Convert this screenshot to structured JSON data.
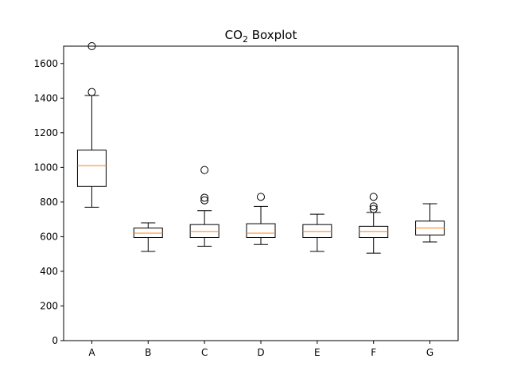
{
  "chart_data": {
    "type": "boxplot",
    "title": {
      "prefix": "CO",
      "subscript": "2",
      "suffix": " Boxplot"
    },
    "xlabel": "",
    "ylabel": "",
    "ylim": [
      0,
      1700
    ],
    "yticks": [
      0,
      200,
      400,
      600,
      800,
      1000,
      1200,
      1400,
      1600
    ],
    "categories": [
      "A",
      "B",
      "C",
      "D",
      "E",
      "F",
      "G"
    ],
    "boxes": [
      {
        "label": "A",
        "whisker_low": 770,
        "q1": 890,
        "median": 1010,
        "q3": 1100,
        "whisker_high": 1415,
        "outliers": [
          1435,
          1700
        ]
      },
      {
        "label": "B",
        "whisker_low": 515,
        "q1": 595,
        "median": 620,
        "q3": 650,
        "whisker_high": 680,
        "outliers": []
      },
      {
        "label": "C",
        "whisker_low": 545,
        "q1": 595,
        "median": 630,
        "q3": 670,
        "whisker_high": 750,
        "outliers": [
          810,
          825,
          985
        ]
      },
      {
        "label": "D",
        "whisker_low": 555,
        "q1": 595,
        "median": 620,
        "q3": 675,
        "whisker_high": 775,
        "outliers": [
          830
        ]
      },
      {
        "label": "E",
        "whisker_low": 515,
        "q1": 595,
        "median": 630,
        "q3": 670,
        "whisker_high": 730,
        "outliers": []
      },
      {
        "label": "F",
        "whisker_low": 505,
        "q1": 595,
        "median": 630,
        "q3": 660,
        "whisker_high": 740,
        "outliers": [
          760,
          775,
          830
        ]
      },
      {
        "label": "G",
        "whisker_low": 570,
        "q1": 610,
        "median": 650,
        "q3": 690,
        "whisker_high": 790,
        "outliers": []
      }
    ],
    "colors": {
      "box": "#000000",
      "median": "#ff7f0e",
      "axes": "#000000"
    },
    "grid": false
  }
}
